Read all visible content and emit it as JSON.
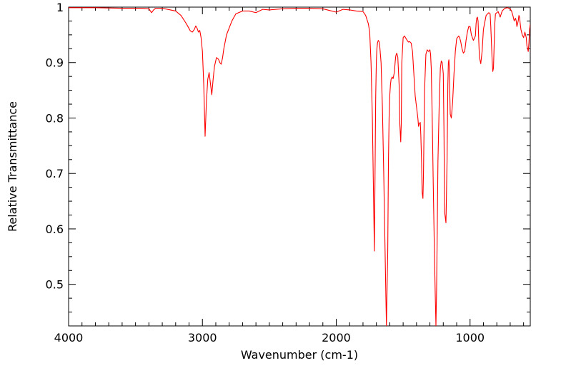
{
  "chart_data": {
    "type": "line",
    "title": "",
    "xlabel": "Wavenumber (cm-1)",
    "ylabel": "Relative Transmittance",
    "xlim": [
      4000,
      550
    ],
    "ylim": [
      0.425,
      1.0
    ],
    "x_reversed": true,
    "grid": false,
    "legend": "none",
    "x_ticks": [
      4000,
      3000,
      2000,
      1000
    ],
    "x_tick_labels": [
      "4000",
      "3000",
      "2000",
      "1000"
    ],
    "y_ticks": [
      1.0,
      0.9,
      0.8,
      0.7,
      0.6,
      0.5
    ],
    "y_tick_labels": [
      "1",
      "0.9",
      "0.8",
      "0.7",
      "0.6",
      "0.5"
    ],
    "series": [
      {
        "color": "#ff0000",
        "x": [
          4000,
          3800,
          3600,
          3450,
          3400,
          3380,
          3365,
          3350,
          3300,
          3200,
          3160,
          3120,
          3090,
          3075,
          3060,
          3050,
          3040,
          3030,
          3020,
          3010,
          3000,
          2990,
          2980,
          2970,
          2960,
          2950,
          2940,
          2930,
          2920,
          2910,
          2895,
          2880,
          2870,
          2860,
          2850,
          2840,
          2820,
          2780,
          2750,
          2700,
          2650,
          2600,
          2550,
          2500,
          2450,
          2400,
          2300,
          2200,
          2100,
          2050,
          2000,
          1950,
          1900,
          1850,
          1800,
          1780,
          1760,
          1750,
          1740,
          1730,
          1720,
          1715,
          1710,
          1705,
          1700,
          1696,
          1692,
          1686,
          1680,
          1675,
          1665,
          1655,
          1645,
          1635,
          1625,
          1615,
          1610,
          1605,
          1600,
          1595,
          1590,
          1582,
          1575,
          1565,
          1560,
          1555,
          1548,
          1540,
          1530,
          1525,
          1518,
          1514,
          1510,
          1500,
          1490,
          1480,
          1470,
          1460,
          1452,
          1440,
          1430,
          1420,
          1410,
          1400,
          1390,
          1385,
          1380,
          1372,
          1368,
          1362,
          1358,
          1352,
          1348,
          1340,
          1330,
          1320,
          1310,
          1300,
          1295,
          1290,
          1285,
          1280,
          1275,
          1270,
          1265,
          1260,
          1255,
          1250,
          1245,
          1240,
          1230,
          1222,
          1215,
          1208,
          1200,
          1195,
          1190,
          1180,
          1172,
          1166,
          1162,
          1158,
          1155,
          1152,
          1148,
          1140,
          1130,
          1120,
          1110,
          1100,
          1085,
          1078,
          1070,
          1060,
          1050,
          1040,
          1030,
          1020,
          1010,
          1000,
          990,
          975,
          960,
          955,
          950,
          945,
          940,
          935,
          930,
          920,
          910,
          900,
          880,
          860,
          850,
          845,
          840,
          835,
          830,
          825,
          820,
          815,
          810,
          800,
          790,
          775,
          760,
          740,
          720,
          700,
          690,
          680,
          670,
          660,
          655,
          650,
          645,
          640,
          635,
          630,
          625,
          620,
          610,
          600,
          595,
          590,
          580,
          575,
          570,
          565,
          560,
          555,
          550
        ],
        "y": [
          0.999,
          0.999,
          0.998,
          0.998,
          0.997,
          0.99,
          0.995,
          0.998,
          0.998,
          0.993,
          0.985,
          0.97,
          0.957,
          0.955,
          0.96,
          0.966,
          0.962,
          0.955,
          0.958,
          0.945,
          0.92,
          0.86,
          0.767,
          0.83,
          0.87,
          0.882,
          0.862,
          0.842,
          0.87,
          0.893,
          0.909,
          0.906,
          0.9,
          0.897,
          0.908,
          0.925,
          0.95,
          0.975,
          0.988,
          0.993,
          0.993,
          0.99,
          0.996,
          0.995,
          0.996,
          0.997,
          0.998,
          0.998,
          0.997,
          0.994,
          0.991,
          0.996,
          0.995,
          0.993,
          0.992,
          0.985,
          0.97,
          0.955,
          0.9,
          0.8,
          0.64,
          0.56,
          0.7,
          0.84,
          0.905,
          0.925,
          0.935,
          0.94,
          0.938,
          0.93,
          0.9,
          0.82,
          0.7,
          0.56,
          0.425,
          0.56,
          0.72,
          0.8,
          0.84,
          0.86,
          0.87,
          0.874,
          0.871,
          0.883,
          0.9,
          0.912,
          0.917,
          0.91,
          0.86,
          0.79,
          0.757,
          0.79,
          0.9,
          0.945,
          0.948,
          0.944,
          0.94,
          0.937,
          0.938,
          0.935,
          0.92,
          0.88,
          0.84,
          0.82,
          0.8,
          0.785,
          0.79,
          0.792,
          0.77,
          0.72,
          0.666,
          0.655,
          0.7,
          0.85,
          0.915,
          0.923,
          0.92,
          0.923,
          0.915,
          0.89,
          0.83,
          0.76,
          0.68,
          0.61,
          0.54,
          0.48,
          0.425,
          0.49,
          0.6,
          0.72,
          0.83,
          0.89,
          0.903,
          0.9,
          0.88,
          0.78,
          0.63,
          0.611,
          0.72,
          0.86,
          0.9,
          0.905,
          0.89,
          0.85,
          0.807,
          0.8,
          0.83,
          0.88,
          0.92,
          0.943,
          0.948,
          0.945,
          0.938,
          0.925,
          0.917,
          0.92,
          0.94,
          0.955,
          0.965,
          0.965,
          0.95,
          0.94,
          0.948,
          0.97,
          0.98,
          0.982,
          0.975,
          0.94,
          0.91,
          0.898,
          0.92,
          0.96,
          0.985,
          0.99,
          0.988,
          0.965,
          0.935,
          0.905,
          0.884,
          0.89,
          0.93,
          0.97,
          0.988,
          0.99,
          0.992,
          0.982,
          0.993,
          0.998,
          0.999,
          0.997,
          0.993,
          0.985,
          0.975,
          0.98,
          0.975,
          0.965,
          0.97,
          0.975,
          0.985,
          0.982,
          0.97,
          0.96,
          0.95,
          0.945,
          0.95,
          0.955,
          0.945,
          0.93,
          0.925,
          0.92,
          0.935,
          0.96,
          0.97
        ]
      }
    ]
  }
}
